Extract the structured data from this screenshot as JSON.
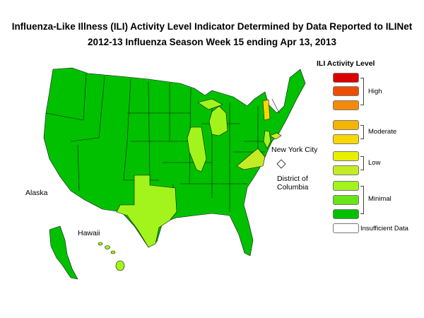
{
  "title": {
    "line1": "Influenza-Like Illness (ILI) Activity Level Indicator Determined by Data Reported to ILINet",
    "line2": "2012-13  Influenza Season Week  15 ending Apr 13, 2013"
  },
  "map_labels": {
    "alaska": "Alaska",
    "hawaii": "Hawaii",
    "nyc": "New York City",
    "dc_line1": "District of",
    "dc_line2": "Columbia"
  },
  "legend": {
    "title": "ILI Activity Level",
    "levels": [
      {
        "level": 10,
        "color": "#d90000"
      },
      {
        "level": 9,
        "color": "#ee4d00"
      },
      {
        "level": 8,
        "color": "#f48a0a"
      },
      {
        "level": 7,
        "color": "#f5b400"
      },
      {
        "level": 6,
        "color": "#f8d800"
      },
      {
        "level": 5,
        "color": "#e8f000"
      },
      {
        "level": 4,
        "color": "#c4ec24"
      },
      {
        "level": 3,
        "color": "#a2f41c"
      },
      {
        "level": 2,
        "color": "#66e61a"
      },
      {
        "level": 1,
        "color": "#00c000"
      },
      {
        "level": 0,
        "color": "#ffffff"
      }
    ],
    "groups": {
      "high": "High",
      "moderate": "Moderate",
      "low": "Low",
      "minimal": "Minimal",
      "insufficient": "Insufficient Data"
    }
  },
  "colors": {
    "minimal_dark": "#00c000",
    "minimal_light": "#a2f41c",
    "low_light": "#c4ec24",
    "low_yellow": "#e8f000",
    "insufficient": "#ffffff"
  },
  "state_levels": {
    "texas": 3,
    "michigan": 3,
    "illinois": 3,
    "virginia": 4,
    "new_jersey": 3,
    "vermont": 6,
    "new_york_city": 4,
    "hawaii": 3,
    "all_other_states": 1
  }
}
